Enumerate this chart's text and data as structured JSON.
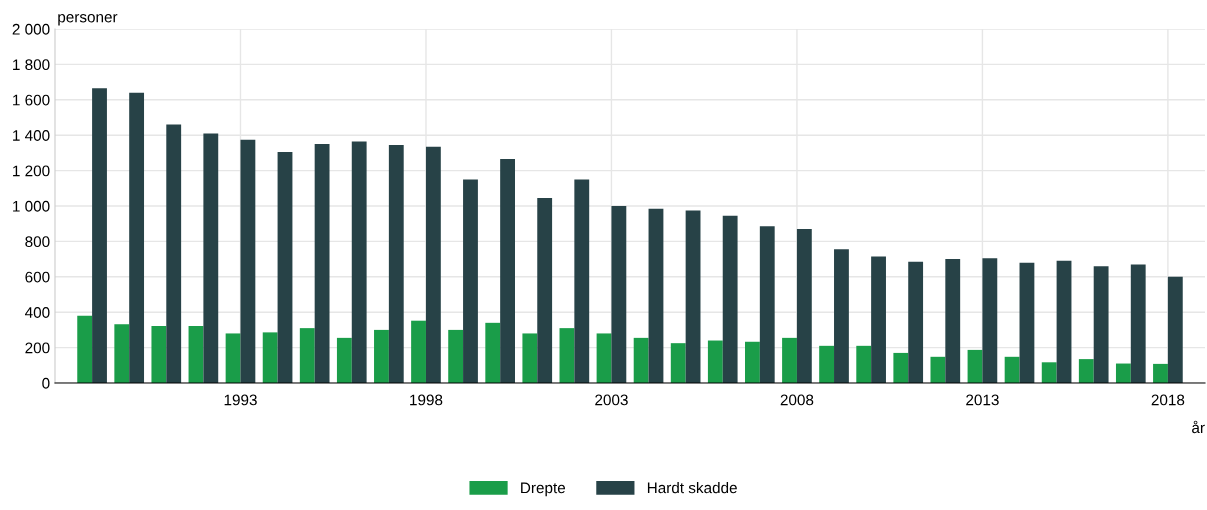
{
  "chart_data": {
    "type": "bar",
    "ylabel": "personer",
    "xlabel": "år",
    "x": [
      1989,
      1990,
      1991,
      1992,
      1993,
      1994,
      1995,
      1996,
      1997,
      1998,
      1999,
      2000,
      2001,
      2002,
      2003,
      2004,
      2005,
      2006,
      2007,
      2008,
      2009,
      2010,
      2011,
      2012,
      2013,
      2014,
      2015,
      2016,
      2017,
      2018
    ],
    "series": [
      {
        "name": "Drepte",
        "color": "#1a9d49",
        "values": [
          380,
          332,
          322,
          322,
          280,
          286,
          310,
          255,
          300,
          352,
          300,
          340,
          280,
          310,
          280,
          255,
          225,
          240,
          233,
          255,
          210,
          210,
          170,
          148,
          187,
          148,
          117,
          135,
          110,
          108
        ]
      },
      {
        "name": "Hardt skadde",
        "color": "#274247",
        "values": [
          1665,
          1640,
          1460,
          1410,
          1375,
          1305,
          1350,
          1365,
          1345,
          1335,
          1150,
          1265,
          1045,
          1150,
          1000,
          985,
          975,
          945,
          885,
          870,
          755,
          715,
          685,
          700,
          705,
          680,
          690,
          660,
          670,
          600
        ]
      }
    ],
    "xlim": [
      1988,
      2019
    ],
    "xticks": [
      1993,
      1998,
      2003,
      2008,
      2013,
      2018
    ],
    "ylim": [
      0,
      2000
    ],
    "yticks": [
      0,
      200,
      400,
      600,
      800,
      {
        "value": 1000,
        "label": "1 000"
      },
      {
        "value": 1200,
        "label": "1 200"
      },
      {
        "value": 1400,
        "label": "1 400"
      },
      {
        "value": 1600,
        "label": "1 600"
      },
      {
        "value": 1800,
        "label": "1 800"
      },
      {
        "value": 2000,
        "label": "2 000"
      }
    ],
    "grid": true,
    "legend": "bottom"
  }
}
